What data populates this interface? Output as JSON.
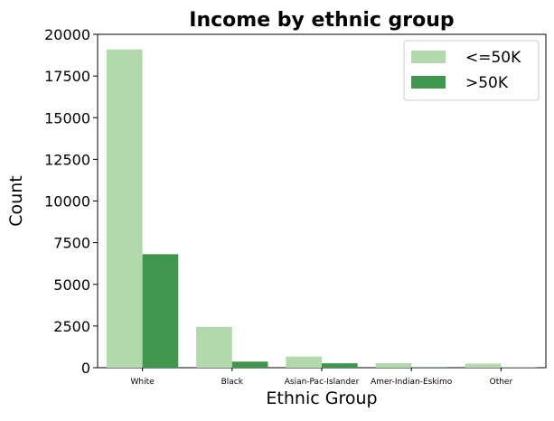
{
  "chart_data": {
    "type": "bar",
    "title": "Income by ethnic group",
    "xlabel": "Ethnic Group",
    "ylabel": "Count",
    "categories": [
      "White",
      "Black",
      "Asian-Pac-Islander",
      "Amer-Indian-Eskimo",
      "Other"
    ],
    "series": [
      {
        "name": "<=50K",
        "values": [
          19094,
          2451,
          662,
          275,
          246
        ]
      },
      {
        "name": ">50K",
        "values": [
          6809,
          366,
          265,
          36,
          25
        ]
      }
    ],
    "ylim": [
      0,
      20000
    ],
    "yticks": [
      "0",
      "2500",
      "5000",
      "7500",
      "10000",
      "12500",
      "15000",
      "17500",
      "20000"
    ],
    "colors": [
      "#b1d9ab",
      "#41964f"
    ],
    "grid": false,
    "legend_position": "top-right"
  }
}
